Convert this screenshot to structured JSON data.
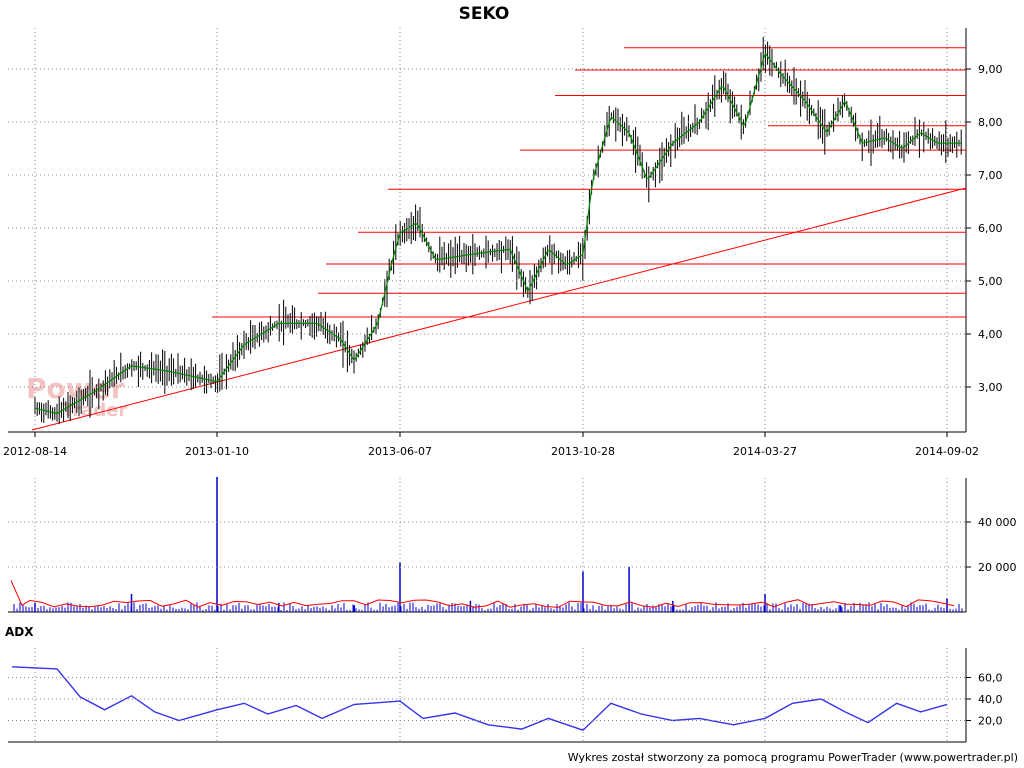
{
  "chart_data": [
    {
      "type": "candlestick",
      "title": "SEKO",
      "x_ticks": [
        "2012-08-14",
        "2013-01-10",
        "2013-06-07",
        "2013-10-28",
        "2014-03-27",
        "2014-09-02"
      ],
      "y_ticks": [
        "3,00",
        "4,00",
        "5,00",
        "6,00",
        "7,00",
        "8,00",
        "9,00"
      ],
      "ylim": [
        2.2,
        9.6
      ],
      "series": [
        {
          "name": "price",
          "color": "#000000",
          "x": [
            "2012-08-14",
            "2012-09-01",
            "2012-10-01",
            "2012-11-01",
            "2012-12-01",
            "2013-01-10",
            "2013-02-01",
            "2013-03-01",
            "2013-04-01",
            "2013-04-20",
            "2013-05-01",
            "2013-05-20",
            "2013-06-01",
            "2013-06-07",
            "2013-06-20",
            "2013-07-05",
            "2013-08-01",
            "2013-09-01",
            "2013-09-15",
            "2013-10-01",
            "2013-10-15",
            "2013-10-28",
            "2013-11-05",
            "2013-11-20",
            "2013-12-05",
            "2013-12-20",
            "2014-01-10",
            "2014-02-01",
            "2014-02-20",
            "2014-03-10",
            "2014-03-27",
            "2014-04-10",
            "2014-05-01",
            "2014-05-20",
            "2014-06-05",
            "2014-06-20",
            "2014-07-10",
            "2014-07-25",
            "2014-08-10",
            "2014-08-25",
            "2014-09-02"
          ],
          "y": [
            2.6,
            2.5,
            2.9,
            3.4,
            3.3,
            3.1,
            3.8,
            4.2,
            4.2,
            3.9,
            3.5,
            4.2,
            5.4,
            5.9,
            6.1,
            5.4,
            5.5,
            5.6,
            4.8,
            5.6,
            5.3,
            5.5,
            6.9,
            8.1,
            7.8,
            6.9,
            7.6,
            8.0,
            8.7,
            7.9,
            9.3,
            8.9,
            8.4,
            7.8,
            8.4,
            7.6,
            7.7,
            7.5,
            7.8,
            7.6,
            7.6
          ]
        }
      ],
      "horizontal_levels": [
        9.4,
        8.98,
        8.5,
        7.93,
        7.47,
        6.73,
        5.92,
        5.32,
        4.77,
        4.32
      ]
    },
    {
      "type": "bar",
      "title": "",
      "y_ticks": [
        "20 000",
        "40 000"
      ],
      "ylim": [
        0,
        60000
      ],
      "series": [
        {
          "name": "volume",
          "color": "#0000cc",
          "x": [
            "2012-08-14",
            "2012-11-01",
            "2013-01-10",
            "2013-03-01",
            "2013-05-01",
            "2013-06-07",
            "2013-08-01",
            "2013-10-28",
            "2013-12-05",
            "2014-01-10",
            "2014-03-27",
            "2014-06-01",
            "2014-09-02"
          ],
          "values": [
            4000,
            8000,
            60000,
            4000,
            3000,
            22000,
            5000,
            18000,
            20000,
            5000,
            8000,
            3000,
            6000
          ]
        }
      ]
    },
    {
      "type": "line",
      "title": "ADX",
      "y_ticks": [
        "20,0",
        "40,0",
        "60,0"
      ],
      "ylim": [
        0,
        80
      ],
      "series": [
        {
          "name": "ADX",
          "color": "#3333ee",
          "x": [
            "2012-08-14",
            "2012-09-01",
            "2012-09-20",
            "2012-10-10",
            "2012-11-01",
            "2012-11-20",
            "2012-12-10",
            "2013-01-10",
            "2013-02-01",
            "2013-02-20",
            "2013-03-15",
            "2013-04-05",
            "2013-05-01",
            "2013-06-07",
            "2013-06-25",
            "2013-07-20",
            "2013-08-15",
            "2013-09-10",
            "2013-10-01",
            "2013-10-28",
            "2013-11-20",
            "2013-12-15",
            "2014-01-10",
            "2014-02-01",
            "2014-03-01",
            "2014-03-27",
            "2014-04-20",
            "2014-05-15",
            "2014-06-05",
            "2014-06-25",
            "2014-07-20",
            "2014-08-10",
            "2014-09-02"
          ],
          "values": [
            70,
            68,
            42,
            30,
            43,
            28,
            20,
            30,
            36,
            26,
            34,
            22,
            35,
            38,
            22,
            27,
            16,
            12,
            22,
            11,
            36,
            26,
            20,
            22,
            16,
            22,
            36,
            40,
            28,
            18,
            36,
            28,
            35
          ]
        }
      ]
    }
  ],
  "watermark": {
    "line1": "Power",
    "line2": "Trader"
  },
  "footer": "Wykres został stworzony za pomocą programu PowerTrader (www.powertrader.pl)",
  "colors": {
    "price": "#000000",
    "ma": "#008800",
    "levels": "#ff0000",
    "volume": "#0000cc",
    "volume_ma": "#ff0000",
    "adx": "#3333ee"
  }
}
